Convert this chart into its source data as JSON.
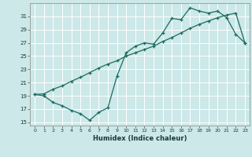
{
  "xlabel": "Humidex (Indice chaleur)",
  "bg_color": "#cce8e8",
  "grid_color": "#ffffff",
  "line_color": "#1a6b5e",
  "xlim": [
    -0.5,
    23.5
  ],
  "ylim": [
    14.5,
    33.0
  ],
  "xticks": [
    0,
    1,
    2,
    3,
    4,
    5,
    6,
    7,
    8,
    9,
    10,
    11,
    12,
    13,
    14,
    15,
    16,
    17,
    18,
    19,
    20,
    21,
    22,
    23
  ],
  "yticks": [
    15,
    17,
    19,
    21,
    23,
    25,
    27,
    29,
    31
  ],
  "curve1_x": [
    0,
    1,
    2,
    3,
    4,
    5,
    6,
    7,
    8,
    9,
    10,
    11,
    12,
    13,
    14,
    15,
    16,
    17,
    18,
    19,
    20,
    21,
    22,
    23
  ],
  "curve1_y": [
    19.2,
    19.0,
    18.0,
    17.5,
    16.8,
    16.3,
    15.3,
    16.5,
    17.2,
    22.0,
    25.5,
    26.5,
    27.0,
    26.8,
    28.5,
    30.7,
    30.5,
    32.3,
    31.8,
    31.5,
    31.8,
    30.8,
    28.3,
    27.0
  ],
  "curve2_x": [
    0,
    1,
    2,
    3,
    4,
    5,
    6,
    7,
    8,
    9,
    10,
    11,
    12,
    13,
    14,
    15,
    16,
    17,
    18,
    19,
    20,
    21,
    22,
    23
  ],
  "curve2_y": [
    19.2,
    19.3,
    20.0,
    20.5,
    21.2,
    21.8,
    22.5,
    23.2,
    23.8,
    24.3,
    25.0,
    25.5,
    26.0,
    26.5,
    27.2,
    27.8,
    28.5,
    29.2,
    29.8,
    30.3,
    30.8,
    31.2,
    31.5,
    27.0
  ]
}
